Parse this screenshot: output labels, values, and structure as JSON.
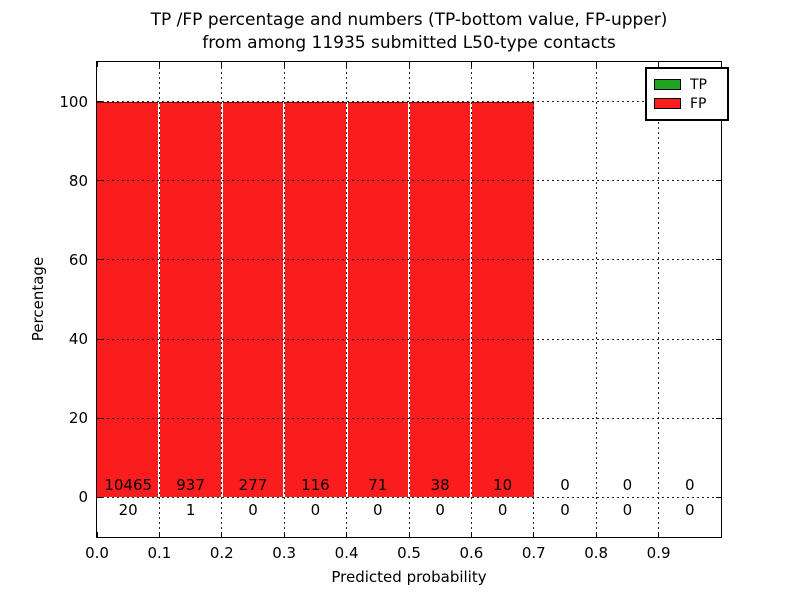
{
  "title": {
    "line1": "TP /FP percentage and numbers (TP-bottom value, FP-upper)",
    "line2": "from among 11935 submitted L50-type contacts"
  },
  "axes": {
    "xlabel": "Predicted probability",
    "ylabel": "Percentage",
    "xtick_labels": [
      "0.0",
      "0.1",
      "0.2",
      "0.3",
      "0.4",
      "0.5",
      "0.6",
      "0.7",
      "0.8",
      "0.9"
    ],
    "ytick_labels": [
      "0",
      "20",
      "40",
      "60",
      "80",
      "100"
    ]
  },
  "legend": {
    "position": "upper-right",
    "entries": [
      {
        "label": "TP",
        "color": "#1fa21f"
      },
      {
        "label": "FP",
        "color": "#fb1d1d"
      }
    ]
  },
  "chart_data": {
    "type": "bar",
    "stacked": true,
    "title": "TP /FP percentage and numbers (TP-bottom value, FP-upper) from among 11935 submitted L50-type contacts",
    "xlabel": "Predicted probability",
    "ylabel": "Percentage",
    "xlim": [
      0.0,
      1.0
    ],
    "ylim": [
      -10,
      110
    ],
    "grid": true,
    "grid_style": "dotted",
    "legend_position": "upper-right",
    "total_contacts": 11935,
    "bin_start": [
      0.0,
      0.1,
      0.2,
      0.3,
      0.4,
      0.5,
      0.6,
      0.7,
      0.8,
      0.9
    ],
    "bin_width": 0.1,
    "xticks": [
      0.0,
      0.1,
      0.2,
      0.3,
      0.4,
      0.5,
      0.6,
      0.7,
      0.8,
      0.9
    ],
    "yticks": [
      0,
      20,
      40,
      60,
      80,
      100
    ],
    "series": [
      {
        "name": "TP",
        "color": "#1fa21f",
        "counts": [
          20,
          1,
          0,
          0,
          0,
          0,
          0,
          0,
          0,
          0
        ]
      },
      {
        "name": "FP",
        "color": "#fb1d1d",
        "counts": [
          10465,
          937,
          277,
          116,
          71,
          38,
          10,
          0,
          0,
          0
        ]
      }
    ],
    "stacked_bar_total_percent": [
      100,
      100,
      100,
      100,
      100,
      100,
      100,
      0,
      0,
      0
    ]
  }
}
